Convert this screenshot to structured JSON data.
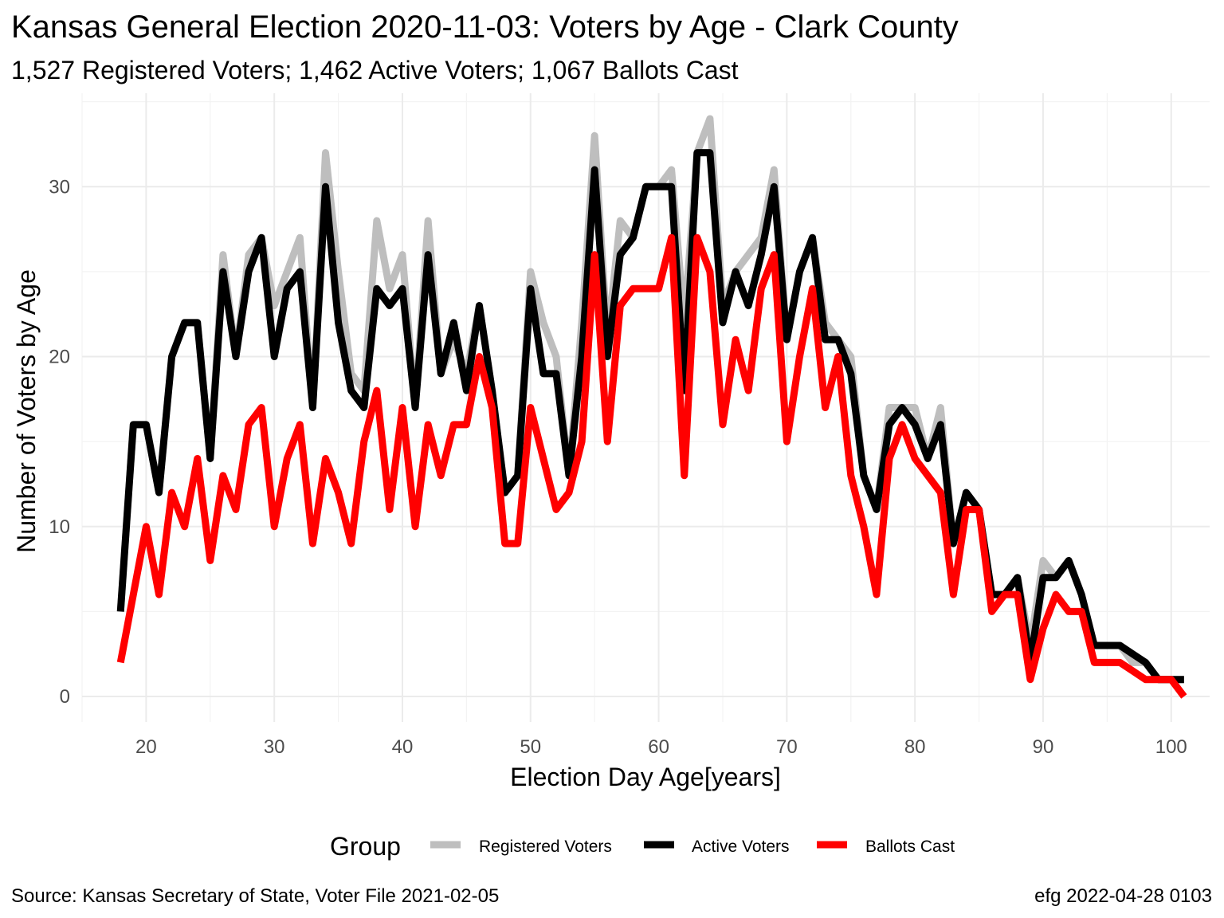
{
  "chart_data": {
    "type": "line",
    "title": "Kansas General Election 2020-11-03:  Voters by Age - Clark County",
    "subtitle": "1,527 Registered Voters; 1,462 Active Voters; 1,067 Ballots Cast",
    "xlabel": "Election Day Age[years]",
    "ylabel": "Number of Voters by Age",
    "xlim": [
      15,
      103
    ],
    "ylim": [
      -1.5,
      35.5
    ],
    "x_ticks": [
      20,
      30,
      40,
      50,
      60,
      70,
      80,
      90,
      100
    ],
    "y_ticks": [
      0,
      10,
      20,
      30
    ],
    "grid": true,
    "legend": {
      "title": "Group",
      "position": "bottom"
    },
    "x": [
      18,
      19,
      20,
      21,
      22,
      23,
      24,
      25,
      26,
      27,
      28,
      29,
      30,
      31,
      32,
      33,
      34,
      35,
      36,
      37,
      38,
      39,
      40,
      41,
      42,
      43,
      44,
      45,
      46,
      47,
      48,
      49,
      50,
      51,
      52,
      53,
      54,
      55,
      56,
      57,
      58,
      59,
      60,
      61,
      62,
      63,
      64,
      65,
      66,
      67,
      68,
      69,
      70,
      71,
      72,
      73,
      74,
      75,
      76,
      77,
      78,
      79,
      80,
      81,
      82,
      83,
      84,
      85,
      86,
      87,
      88,
      89,
      90,
      91,
      92,
      93,
      94,
      95,
      96,
      97,
      98,
      99,
      100,
      101
    ],
    "series": [
      {
        "name": "Registered Voters",
        "color": "#bebebe",
        "values": [
          5,
          16,
          16,
          12,
          20,
          22,
          22,
          14,
          26,
          20,
          26,
          27,
          23,
          25,
          27,
          17,
          32,
          25,
          19,
          18,
          28,
          24,
          26,
          17,
          28,
          19,
          21,
          19,
          23,
          18,
          12,
          13,
          25,
          22,
          20,
          13,
          22,
          33,
          21,
          28,
          27,
          30,
          30,
          31,
          22,
          32,
          34,
          23,
          25,
          26,
          27,
          31,
          21,
          25,
          27,
          22,
          21,
          20,
          13,
          11,
          17,
          17,
          17,
          14,
          17,
          9,
          12,
          11,
          6,
          6,
          7,
          3,
          8,
          7,
          8,
          6,
          3,
          3,
          3,
          2,
          2,
          1,
          1,
          1
        ]
      },
      {
        "name": "Active Voters",
        "color": "#000000",
        "values": [
          5,
          16,
          16,
          12,
          20,
          22,
          22,
          14,
          25,
          20,
          25,
          27,
          20,
          24,
          25,
          17,
          30,
          22,
          18,
          17,
          24,
          23,
          24,
          17,
          26,
          19,
          22,
          18,
          23,
          18,
          12,
          13,
          24,
          19,
          19,
          13,
          20,
          31,
          20,
          26,
          27,
          30,
          30,
          30,
          18,
          32,
          32,
          22,
          25,
          23,
          26,
          30,
          21,
          25,
          27,
          21,
          21,
          19,
          13,
          11,
          16,
          17,
          16,
          14,
          16,
          9,
          12,
          11,
          6,
          6,
          7,
          2,
          7,
          7,
          8,
          6,
          3,
          3,
          3,
          2.5,
          2,
          1,
          1,
          1
        ]
      },
      {
        "name": "Ballots Cast",
        "color": "#ff0000",
        "values": [
          2,
          6,
          10,
          6,
          12,
          10,
          14,
          8,
          13,
          11,
          16,
          17,
          10,
          14,
          16,
          9,
          14,
          12,
          9,
          15,
          18,
          11,
          17,
          10,
          16,
          13,
          16,
          16,
          20,
          17,
          9,
          9,
          17,
          14,
          11,
          12,
          15,
          26,
          15,
          23,
          24,
          24,
          24,
          27,
          13,
          27,
          25,
          16,
          21,
          18,
          24,
          26,
          15,
          20,
          24,
          17,
          20,
          13,
          10,
          6,
          14,
          16,
          14,
          13,
          12,
          6,
          11,
          11,
          5,
          6,
          6,
          1,
          4,
          6,
          5,
          5,
          2,
          2,
          2,
          1.5,
          1,
          1,
          1,
          0
        ]
      }
    ]
  },
  "footer": {
    "source": "Source:  Kansas Secretary of State, Voter File  2021-02-05",
    "credit": "efg 2022-04-28 0103"
  }
}
